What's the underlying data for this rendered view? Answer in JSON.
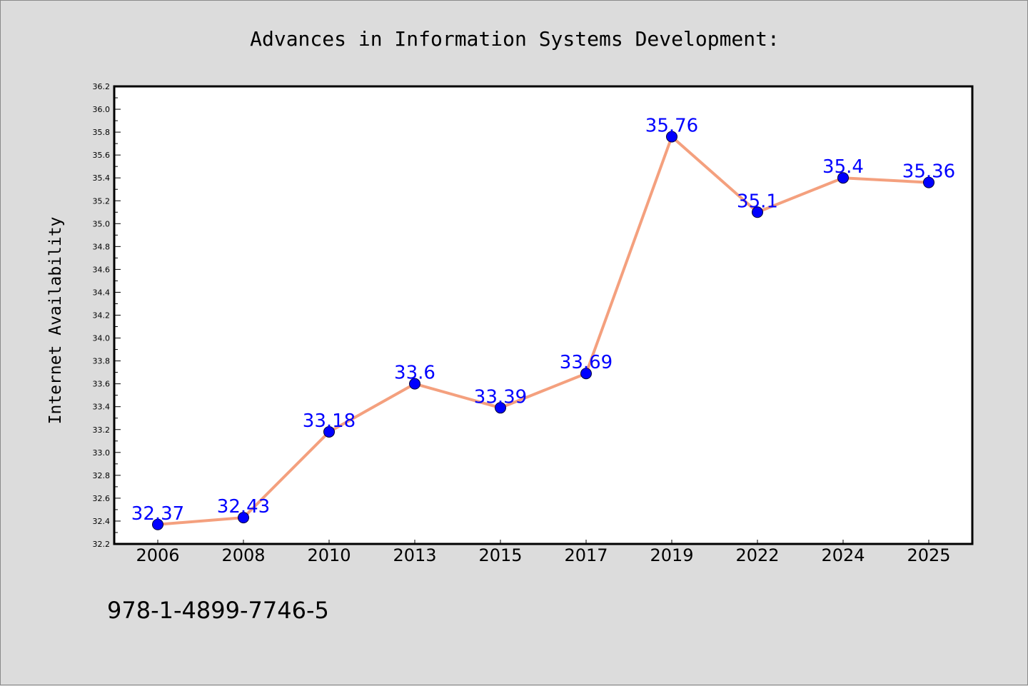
{
  "chart_data": {
    "type": "line",
    "title": "Advances in Information Systems Development:",
    "xlabel": "",
    "ylabel": "Internet Availability",
    "categories": [
      "2006",
      "2008",
      "2010",
      "2013",
      "2015",
      "2017",
      "2019",
      "2022",
      "2024",
      "2025"
    ],
    "values": [
      32.37,
      32.43,
      33.18,
      33.6,
      33.39,
      33.69,
      35.76,
      35.1,
      35.4,
      35.36
    ],
    "data_labels": [
      "32.37",
      "32.43",
      "33.18",
      "33.6",
      "33.39",
      "33.69",
      "35.76",
      "35.1",
      "35.4",
      "35.36"
    ],
    "ylim": [
      32.2,
      36.2
    ],
    "yticks": [
      "32.2",
      "32.4",
      "32.6",
      "32.8",
      "33.0",
      "33.2",
      "33.4",
      "33.6",
      "33.8",
      "34.0",
      "34.2",
      "34.4",
      "34.6",
      "34.8",
      "35.0",
      "35.2",
      "35.4",
      "35.6",
      "35.8",
      "36.0",
      "36.2"
    ],
    "grid": false,
    "line_color": "#f4a07e",
    "marker_color": "#0000ff",
    "label_color": "#0000ff"
  },
  "footer": {
    "isbn": "978-1-4899-7746-5"
  }
}
